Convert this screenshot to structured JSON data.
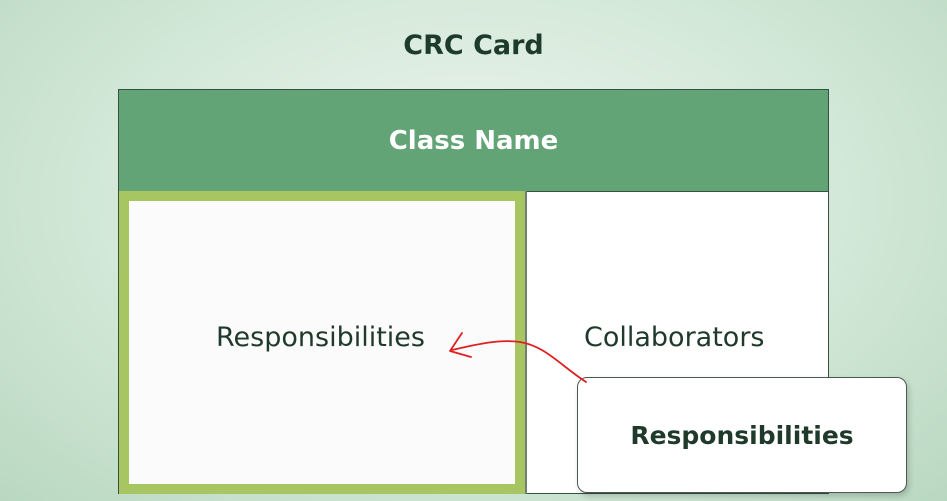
{
  "title": "CRC Card",
  "card": {
    "header": "Class Name",
    "left_label": "Responsibilities",
    "right_label": "Collaborators"
  },
  "popup": {
    "label": "Responsibilities"
  },
  "colors": {
    "header": "#63a477",
    "highlight_border": "#a7c662",
    "annotation": "#e02020"
  }
}
